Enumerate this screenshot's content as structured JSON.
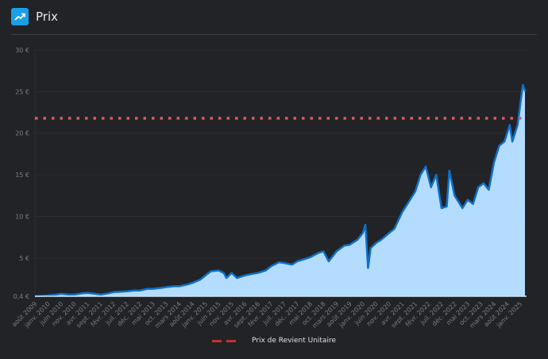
{
  "header": {
    "title": "Prix",
    "icon": "trending-up-icon",
    "icon_color": "#1a9fe6"
  },
  "chart_data": {
    "type": "area",
    "title": "Prix",
    "xlabel": "",
    "ylabel": "",
    "ylim": [
      0.4,
      30
    ],
    "y_ticks": [
      {
        "v": 0.4,
        "label": "0,4 €"
      },
      {
        "v": 5,
        "label": "5 €"
      },
      {
        "v": 10,
        "label": "10 €"
      },
      {
        "v": 15,
        "label": "15 €"
      },
      {
        "v": 20,
        "label": "20 €"
      },
      {
        "v": 25,
        "label": "25 €"
      },
      {
        "v": 30,
        "label": "30 €"
      }
    ],
    "x_ticks": [
      "août 2009",
      "janv. 2010",
      "juin 2010",
      "nov. 2010",
      "avr. 2011",
      "sept. 2011",
      "févr. 2012",
      "juil. 2012",
      "déc. 2012",
      "mai 2013",
      "oct. 2013",
      "mars 2014",
      "août 2014",
      "janv. 2015",
      "juin 2015",
      "nov. 2015",
      "avr. 2016",
      "sept. 2016",
      "févr. 2017",
      "juil. 2017",
      "déc. 2017",
      "mai 2018",
      "oct. 2018",
      "mars 2019",
      "août 2019",
      "janv. 2020",
      "juin 2020",
      "nov. 2020",
      "avr. 2021",
      "sept. 2021",
      "févr. 2022",
      "juil. 2022",
      "déc. 2022",
      "mai 2023",
      "oct. 2023",
      "mars 2024",
      "août 2024",
      "janv. 2025"
    ],
    "x_start": "2009-08",
    "grid": true,
    "series": [
      {
        "name": "Prix",
        "color": "#0f6fc6",
        "fill": "#b3dcff",
        "points": [
          [
            "2009-08",
            0.4
          ],
          [
            "2009-11",
            0.45
          ],
          [
            "2010-01",
            0.5
          ],
          [
            "2010-04",
            0.6
          ],
          [
            "2010-06",
            0.7
          ],
          [
            "2010-09",
            0.6
          ],
          [
            "2010-11",
            0.6
          ],
          [
            "2011-02",
            0.75
          ],
          [
            "2011-04",
            0.8
          ],
          [
            "2011-07",
            0.7
          ],
          [
            "2011-09",
            0.6
          ],
          [
            "2011-12",
            0.75
          ],
          [
            "2012-02",
            0.9
          ],
          [
            "2012-05",
            0.95
          ],
          [
            "2012-07",
            1.0
          ],
          [
            "2012-10",
            1.1
          ],
          [
            "2012-12",
            1.1
          ],
          [
            "2013-03",
            1.3
          ],
          [
            "2013-05",
            1.3
          ],
          [
            "2013-08",
            1.4
          ],
          [
            "2013-10",
            1.5
          ],
          [
            "2014-01",
            1.6
          ],
          [
            "2014-03",
            1.6
          ],
          [
            "2014-06",
            1.8
          ],
          [
            "2014-08",
            2.0
          ],
          [
            "2014-11",
            2.4
          ],
          [
            "2015-01",
            2.9
          ],
          [
            "2015-03",
            3.4
          ],
          [
            "2015-06",
            3.5
          ],
          [
            "2015-08",
            3.2
          ],
          [
            "2015-09",
            2.6
          ],
          [
            "2015-11",
            3.2
          ],
          [
            "2016-01",
            2.6
          ],
          [
            "2016-04",
            2.9
          ],
          [
            "2016-07",
            3.1
          ],
          [
            "2016-09",
            3.2
          ],
          [
            "2016-12",
            3.5
          ],
          [
            "2017-02",
            4.0
          ],
          [
            "2017-05",
            4.5
          ],
          [
            "2017-07",
            4.4
          ],
          [
            "2017-10",
            4.2
          ],
          [
            "2017-12",
            4.6
          ],
          [
            "2018-03",
            4.9
          ],
          [
            "2018-05",
            5.1
          ],
          [
            "2018-08",
            5.6
          ],
          [
            "2018-10",
            5.8
          ],
          [
            "2018-12",
            4.6
          ],
          [
            "2019-03",
            5.8
          ],
          [
            "2019-06",
            6.5
          ],
          [
            "2019-08",
            6.6
          ],
          [
            "2019-11",
            7.2
          ],
          [
            "2020-01",
            8.0
          ],
          [
            "2020-02",
            9.0
          ],
          [
            "2020-03",
            3.8
          ],
          [
            "2020-04",
            6.2
          ],
          [
            "2020-06",
            6.8
          ],
          [
            "2020-08",
            7.2
          ],
          [
            "2020-11",
            8.0
          ],
          [
            "2021-01",
            8.5
          ],
          [
            "2021-04",
            10.5
          ],
          [
            "2021-06",
            11.5
          ],
          [
            "2021-09",
            13.0
          ],
          [
            "2021-11",
            15.0
          ],
          [
            "2022-01",
            16.0
          ],
          [
            "2022-03",
            13.5
          ],
          [
            "2022-05",
            15.0
          ],
          [
            "2022-07",
            11.0
          ],
          [
            "2022-09",
            11.2
          ],
          [
            "2022-10",
            15.5
          ],
          [
            "2022-12",
            12.5
          ],
          [
            "2023-03",
            11.0
          ],
          [
            "2023-05",
            12.0
          ],
          [
            "2023-07",
            11.5
          ],
          [
            "2023-09",
            13.5
          ],
          [
            "2023-11",
            14.0
          ],
          [
            "2024-01",
            13.2
          ],
          [
            "2024-03",
            16.5
          ],
          [
            "2024-05",
            18.5
          ],
          [
            "2024-07",
            19.0
          ],
          [
            "2024-09",
            21.0
          ],
          [
            "2024-10",
            19.0
          ],
          [
            "2024-12",
            21.0
          ],
          [
            "2025-02",
            25.8
          ],
          [
            "2025-03",
            25.0
          ]
        ]
      }
    ],
    "reference_line": {
      "name": "Prix de Revient Unitaire",
      "value": 21.8,
      "color": "#e0566b",
      "legend_color": "#c0342f"
    },
    "legend": {
      "position": "bottom-center",
      "entries": [
        "Prix de Revient Unitaire"
      ]
    }
  }
}
